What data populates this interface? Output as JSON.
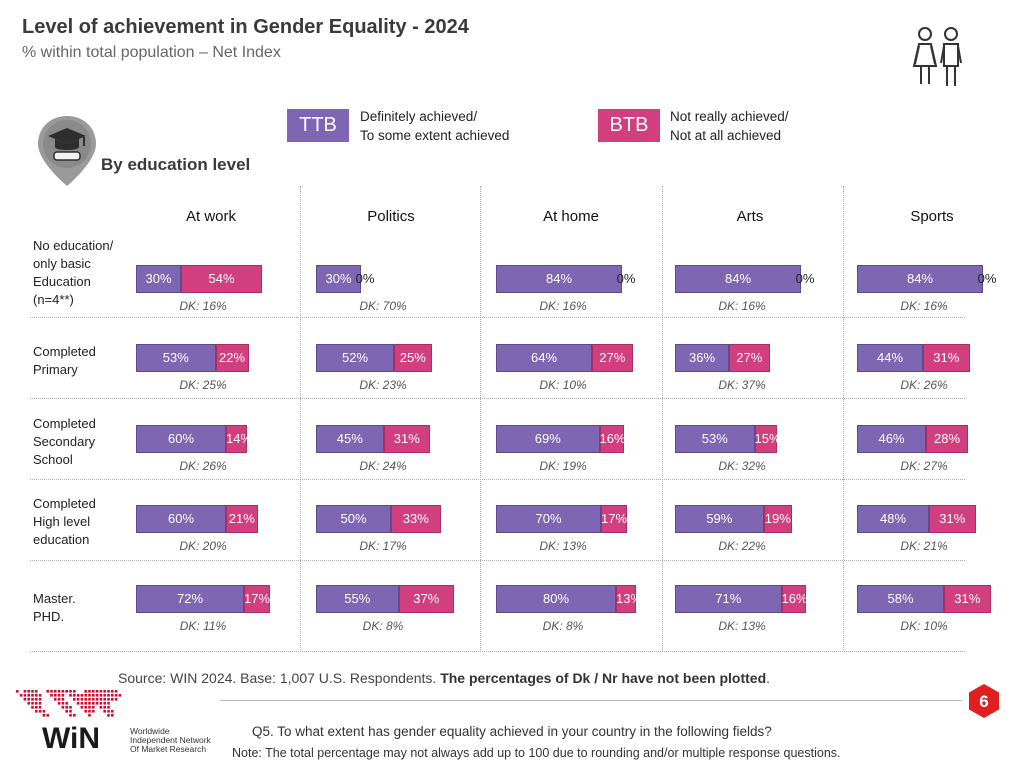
{
  "title": "Level of achievement in Gender Equality - 2024",
  "subtitle": "% within total population – Net Index",
  "legend": [
    {
      "key": "TTB",
      "line1": "Definitely achieved/",
      "line2": "To some extent achieved",
      "color": "#7e66b2"
    },
    {
      "key": "BTB",
      "line1": "Not really achieved/",
      "line2": "Not at all achieved",
      "color": "#d23f7f"
    }
  ],
  "section_label": "By education level",
  "chart_data": {
    "type": "stacked-bar",
    "title": "Level of achievement in Gender Equality - 2024",
    "subtitle": "% within total population – Net Index",
    "fields": [
      "At work",
      "Politics",
      "At home",
      "Arts",
      "Sports"
    ],
    "groups": [
      {
        "label_lines": [
          "No education/",
          "only basic",
          "Education",
          "(n=4**)"
        ]
      },
      {
        "label_lines": [
          "Completed",
          "Primary"
        ]
      },
      {
        "label_lines": [
          "Completed",
          "Secondary",
          "School"
        ]
      },
      {
        "label_lines": [
          "Completed",
          "High level",
          "education"
        ]
      },
      {
        "label_lines": [
          "Master.",
          "PHD."
        ]
      }
    ],
    "series": [
      {
        "name": "TTB",
        "values": [
          [
            30,
            30,
            84,
            84,
            84
          ],
          [
            53,
            52,
            64,
            36,
            44
          ],
          [
            60,
            45,
            69,
            53,
            46
          ],
          [
            60,
            50,
            70,
            59,
            48
          ],
          [
            72,
            55,
            80,
            71,
            58
          ]
        ]
      },
      {
        "name": "BTB",
        "values": [
          [
            54,
            0,
            0,
            0,
            0
          ],
          [
            22,
            25,
            27,
            27,
            31
          ],
          [
            14,
            31,
            16,
            15,
            28
          ],
          [
            21,
            33,
            17,
            19,
            31
          ],
          [
            17,
            37,
            13,
            16,
            31
          ]
        ]
      }
    ],
    "dk": [
      [
        16,
        70,
        16,
        16,
        16
      ],
      [
        25,
        23,
        10,
        37,
        26
      ],
      [
        26,
        24,
        19,
        32,
        27
      ],
      [
        20,
        17,
        13,
        22,
        21
      ],
      [
        11,
        8,
        8,
        13,
        10
      ]
    ],
    "xlim": [
      0,
      100
    ]
  },
  "source_prefix": "Source: WIN 2024. Base: 1,007 U.S. Respondents.",
  "source_bold": "The percentages of Dk / Nr have not been plotted",
  "source_suffix": ".",
  "page_number": "6",
  "question": "Q5. To what extent has gender equality achieved in your country in the following fields?",
  "note": "Note: The total percentage may not always add up to 100 due to rounding and/or multiple response questions.",
  "logo": {
    "name": "WiN",
    "line1": "Worldwide",
    "line2": "Independent Network",
    "line3": "Of Market Research"
  }
}
